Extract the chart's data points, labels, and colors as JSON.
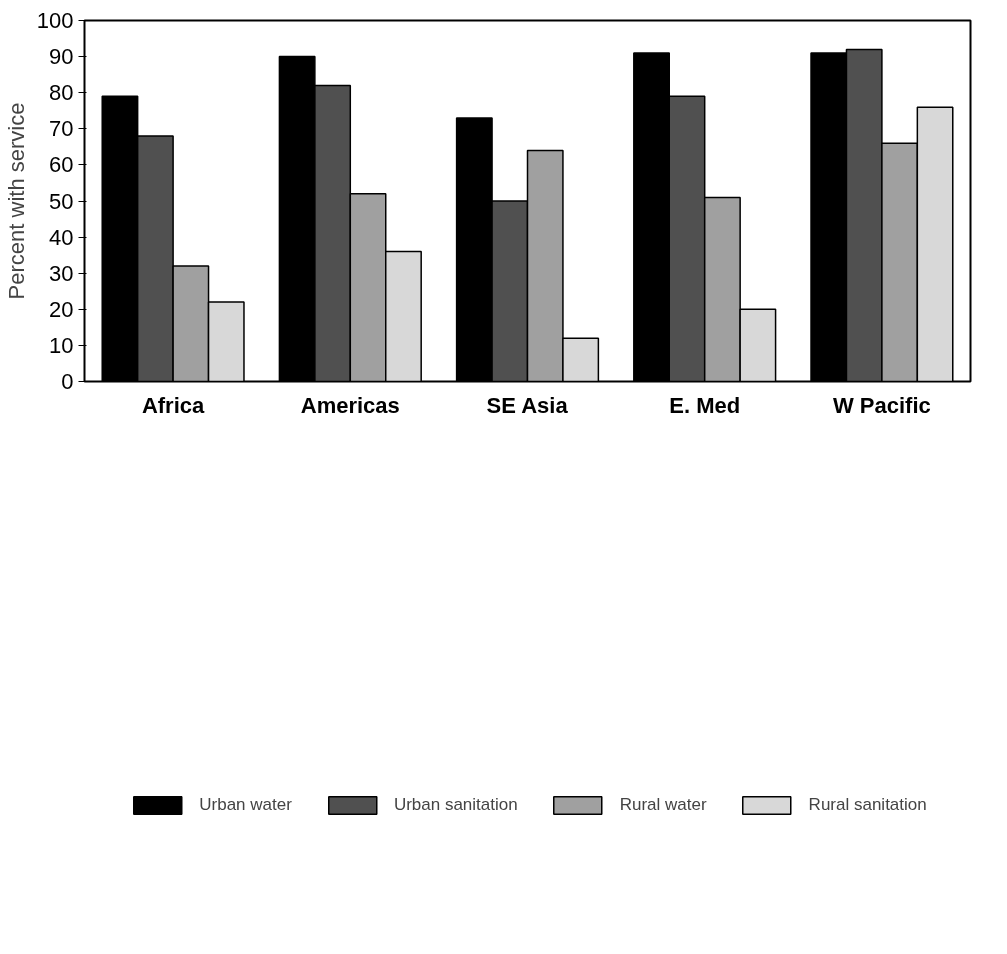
{
  "chart_data": {
    "type": "bar",
    "ylabel": "Percent with service",
    "categories": [
      "Africa",
      "Americas",
      "SE Asia",
      "E. Med",
      "W Pacific"
    ],
    "series": [
      {
        "name": "Urban water",
        "color": "#000000",
        "values": [
          79,
          90,
          73,
          91,
          91
        ]
      },
      {
        "name": "Urban sanitation",
        "color": "#505050",
        "values": [
          68,
          82,
          50,
          79,
          92
        ]
      },
      {
        "name": "Rural water",
        "color": "#a0a0a0",
        "values": [
          32,
          52,
          64,
          51,
          66
        ]
      },
      {
        "name": "Rural sanitation",
        "color": "#d8d8d8",
        "values": [
          22,
          36,
          12,
          20,
          76
        ]
      }
    ],
    "ylim": [
      0,
      100
    ],
    "yticks": [
      0,
      10,
      20,
      30,
      40,
      50,
      60,
      70,
      80,
      90,
      100
    ],
    "grid": false,
    "legend": "bottom"
  }
}
